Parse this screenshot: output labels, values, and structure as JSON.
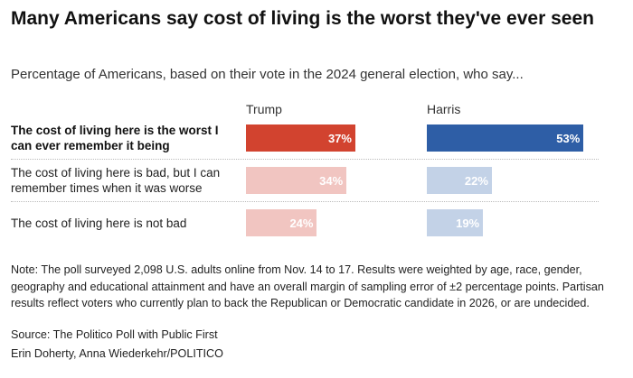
{
  "chart_data": {
    "type": "bar",
    "title": "Many Americans say cost of living is the worst they've ever seen",
    "subtitle": "Percentage of Americans, based on their vote in the 2024 general election, who say...",
    "categories": [
      "The cost of living here is the worst I can ever remember it being",
      "The cost of living here is bad, but I can remember times when it was worse",
      "The cost of living here is not bad"
    ],
    "series": [
      {
        "name": "Trump",
        "colors": [
          "#d2432f",
          "#f1c5c1",
          "#f1c5c1"
        ],
        "values": [
          37,
          34,
          24
        ],
        "value_labels": [
          "37%",
          "34%",
          "24%"
        ]
      },
      {
        "name": "Harris",
        "colors": [
          "#2e5ea6",
          "#c3d2e7",
          "#c3d2e7"
        ],
        "values": [
          53,
          22,
          19
        ],
        "value_labels": [
          "53%",
          "22%",
          "19%"
        ]
      }
    ],
    "note": "Note: The poll surveyed 2,098 U.S. adults online from Nov. 14 to 17. Results were weighted by age, race, gender, geography and educational attainment and have an overall margin of sampling error of ±2 percentage points. Partisan results reflect voters who currently plan to back the Republican or Democratic candidate in 2026, or are undecided.",
    "source": "Source: The Politico Poll with Public First",
    "credit": "Erin Doherty, Anna Wiederkehr/POLITICO"
  }
}
